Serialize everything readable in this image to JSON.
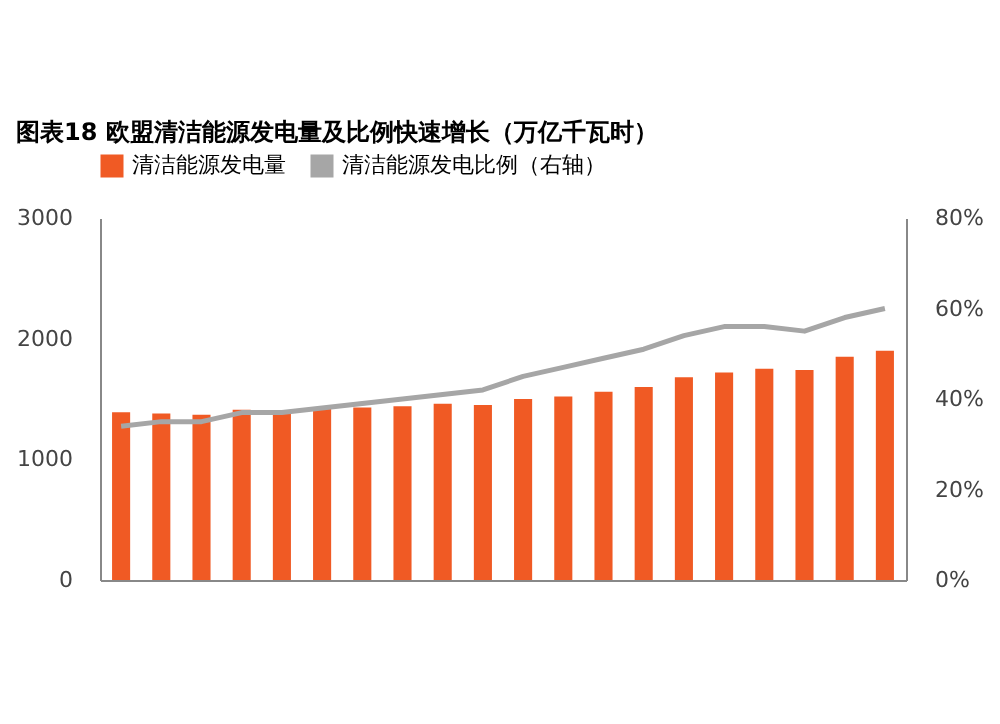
{
  "chart_data": {
    "type": "bar",
    "title": "图表18    欧盟清洁能源发电量及比例快速增长（万亿千瓦时）",
    "categories": [
      null,
      null,
      null,
      null,
      null,
      null,
      null,
      null,
      null,
      null,
      null,
      null,
      null,
      null,
      null,
      null,
      null,
      null,
      null,
      null
    ],
    "series": [
      {
        "name": "清洁能源发电量",
        "color": "#f05a24",
        "values": [
          1390,
          1380,
          1370,
          1410,
          1400,
          1420,
          1430,
          1440,
          1460,
          1450,
          1500,
          1520,
          1560,
          1600,
          1680,
          1720,
          1750,
          1740,
          1850,
          1900
        ]
      },
      {
        "name": "清洁能源发电比例（右轴）",
        "type": "line",
        "axis": "y2",
        "color": "#a6a6a6",
        "values": [
          34,
          35,
          35,
          37,
          37,
          38,
          39,
          40,
          41,
          42,
          45,
          47,
          49,
          51,
          54,
          56,
          56,
          55,
          58,
          60
        ]
      }
    ],
    "ylim": [
      0,
      3000
    ],
    "yticks": [
      0,
      1000,
      2000,
      3000
    ],
    "y2lim": [
      0,
      80
    ],
    "y2ticks": [
      {
        "value": 0,
        "label": "0%"
      },
      {
        "value": 20,
        "label": "20%"
      },
      {
        "value": 40,
        "label": "40%"
      },
      {
        "value": 60,
        "label": "60%"
      },
      {
        "value": 80,
        "label": "80%"
      }
    ],
    "grid": false,
    "legend": "top"
  }
}
